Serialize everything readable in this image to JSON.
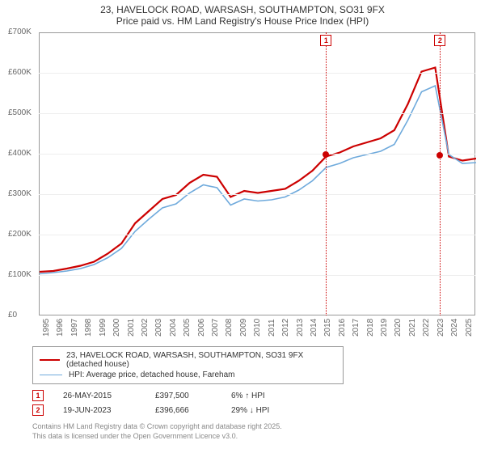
{
  "title_line1": "23, HAVELOCK ROAD, WARSASH, SOUTHAMPTON, SO31 9FX",
  "title_line2": "Price paid vs. HM Land Registry's House Price Index (HPI)",
  "chart": {
    "type": "line",
    "ylim": [
      0,
      700000
    ],
    "ytick_step": 100000,
    "ytick_labels": [
      "£0",
      "£100K",
      "£200K",
      "£300K",
      "£400K",
      "£500K",
      "£600K",
      "£700K"
    ],
    "xrange": [
      1995,
      2026
    ],
    "xticks": [
      1995,
      1996,
      1997,
      1998,
      1999,
      2000,
      2001,
      2002,
      2003,
      2004,
      2005,
      2006,
      2007,
      2008,
      2009,
      2010,
      2011,
      2012,
      2013,
      2014,
      2015,
      2016,
      2017,
      2018,
      2019,
      2020,
      2021,
      2022,
      2023,
      2024,
      2025
    ],
    "background_color": "#ffffff",
    "grid_color": "#eeeeee",
    "border_color": "#999999",
    "series": [
      {
        "name": "property",
        "label": "23, HAVELOCK ROAD, WARSASH, SOUTHAMPTON, SO31 9FX (detached house)",
        "color": "#cc0000",
        "line_width": 2.2,
        "y": [
          110,
          112,
          118,
          125,
          135,
          155,
          180,
          230,
          260,
          290,
          300,
          330,
          350,
          345,
          295,
          310,
          305,
          310,
          315,
          335,
          360,
          395,
          405,
          420,
          430,
          440,
          460,
          525,
          605,
          615,
          395,
          385,
          390
        ]
      },
      {
        "name": "hpi",
        "label": "HPI: Average price, detached house, Fareham",
        "color": "#6faadc",
        "line_width": 1.6,
        "y": [
          105,
          108,
          112,
          118,
          128,
          145,
          168,
          210,
          240,
          268,
          278,
          305,
          325,
          318,
          275,
          290,
          285,
          288,
          295,
          312,
          335,
          368,
          378,
          392,
          400,
          408,
          425,
          485,
          555,
          570,
          400,
          378,
          380
        ]
      }
    ],
    "sales": [
      {
        "idx": "1",
        "date": "26-MAY-2015",
        "price": "£397,500",
        "delta": "6% ↑ HPI",
        "x_year": 2015.4,
        "y_value": 397500
      },
      {
        "idx": "2",
        "date": "19-JUN-2023",
        "price": "£396,666",
        "delta": "29% ↓ HPI",
        "x_year": 2023.5,
        "y_value": 396666
      }
    ]
  },
  "footer_line1": "Contains HM Land Registry data © Crown copyright and database right 2025.",
  "footer_line2": "This data is licensed under the Open Government Licence v3.0."
}
